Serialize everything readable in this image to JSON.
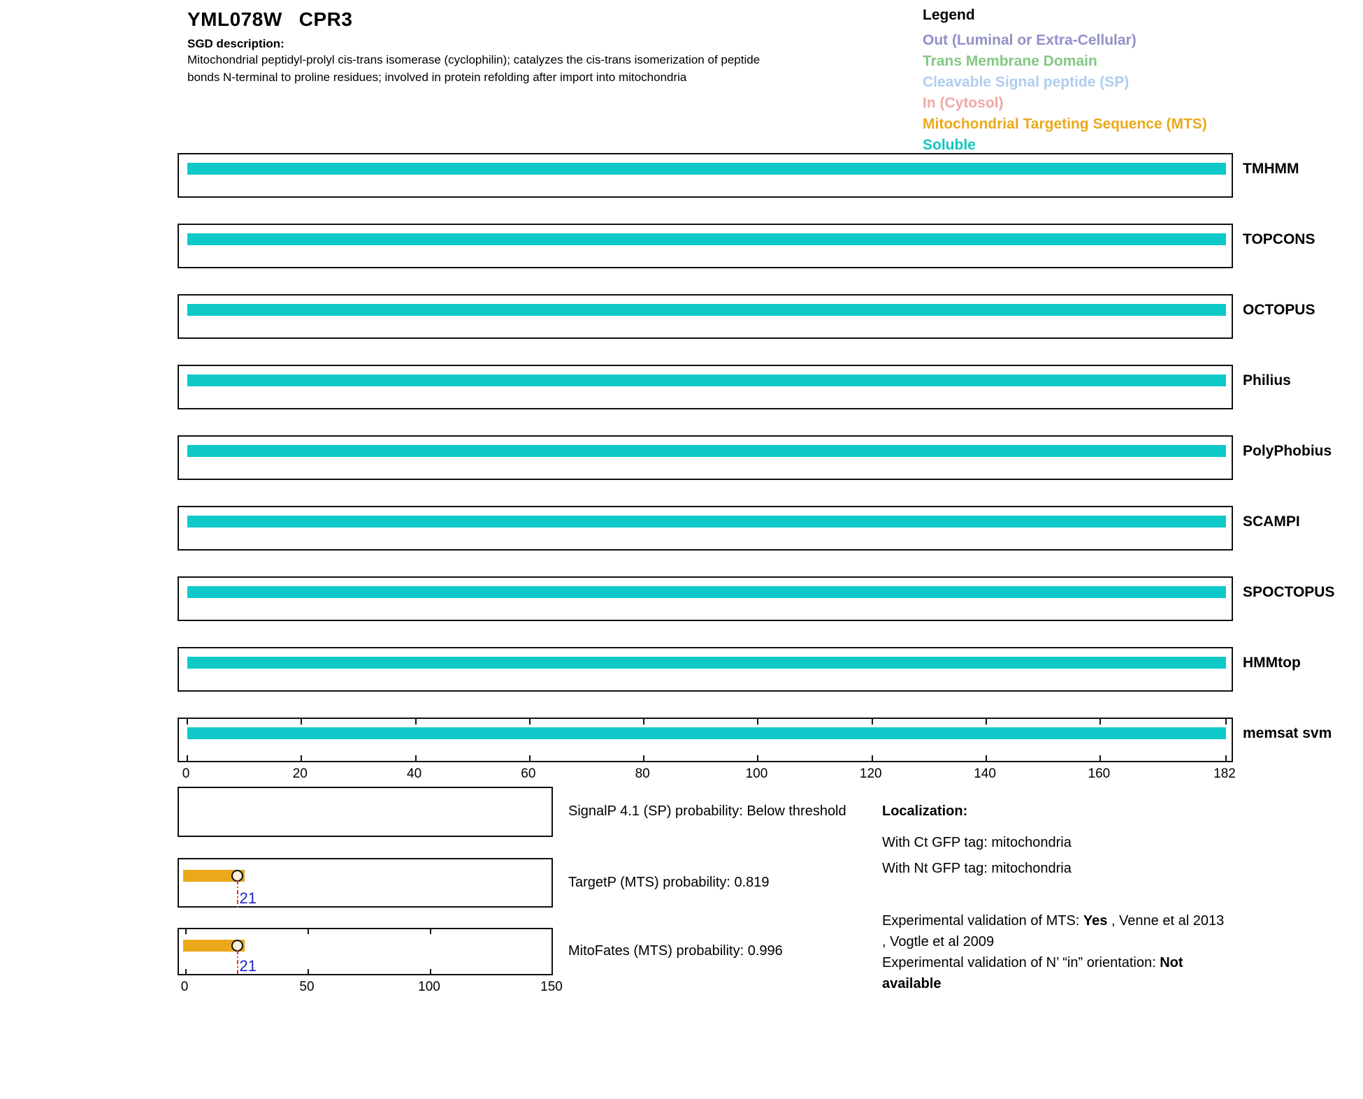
{
  "header": {
    "gene_id": "YML078W",
    "gene_name": "CPR3",
    "sgd_label": "SGD description:",
    "description_line1": "Mitochondrial peptidyl-prolyl cis-trans isomerase (cyclophilin); catalyzes the cis-trans isomerization of peptide",
    "description_line2": "bonds N-terminal to proline residues; involved in protein refolding after import into mitochondria"
  },
  "legend": {
    "title": "Legend",
    "items": [
      {
        "label": "Out (Luminal or Extra-Cellular)",
        "color": "#9191C9"
      },
      {
        "label": "Trans Membrane Domain",
        "color": "#82C982"
      },
      {
        "label": "Cleavable Signal peptide (SP)",
        "color": "#AFCDF0"
      },
      {
        "label": "In (Cytosol)",
        "color": "#F0A8A5"
      },
      {
        "label": "Mitochondrial Targeting Sequence (MTS)",
        "color": "#EBA81A"
      },
      {
        "label": "Soluble",
        "color": "#12C6C2"
      }
    ]
  },
  "chart_data": {
    "type": "bar",
    "title": "Protein topology and targeting predictions for YML078W CPR3",
    "sequence_length": 182,
    "x_axis_ticks": [
      0,
      20,
      40,
      60,
      80,
      100,
      120,
      140,
      160,
      182
    ],
    "tracks": [
      {
        "name": "TMHMM",
        "segments": [
          {
            "type": "Soluble",
            "start": 0,
            "end": 182
          }
        ]
      },
      {
        "name": "TOPCONS",
        "segments": [
          {
            "type": "Soluble",
            "start": 0,
            "end": 182
          }
        ]
      },
      {
        "name": "OCTOPUS",
        "segments": [
          {
            "type": "Soluble",
            "start": 0,
            "end": 182
          }
        ]
      },
      {
        "name": "Philius",
        "segments": [
          {
            "type": "Soluble",
            "start": 0,
            "end": 182
          }
        ]
      },
      {
        "name": "PolyPhobius",
        "segments": [
          {
            "type": "Soluble",
            "start": 0,
            "end": 182
          }
        ]
      },
      {
        "name": "SCAMPI",
        "segments": [
          {
            "type": "Soluble",
            "start": 0,
            "end": 182
          }
        ]
      },
      {
        "name": "SPOCTOPUS",
        "segments": [
          {
            "type": "Soluble",
            "start": 0,
            "end": 182
          }
        ]
      },
      {
        "name": "HMMtop",
        "segments": [
          {
            "type": "Soluble",
            "start": 0,
            "end": 182
          }
        ]
      },
      {
        "name": "memsat svm",
        "segments": [
          {
            "type": "Soluble",
            "start": 0,
            "end": 182
          }
        ]
      }
    ],
    "probability_plots": [
      {
        "name": "SignalP",
        "caption": "SignalP 4.1 (SP) probability: Below threshold",
        "value": null,
        "bar": null
      },
      {
        "name": "TargetP",
        "caption": "TargetP (MTS) probability: 0.819",
        "value": 0.819,
        "bar": {
          "type": "MTS",
          "start": 0,
          "end": 24,
          "marker": 21
        }
      },
      {
        "name": "MitoFates",
        "caption": "MitoFates (MTS) probability: 0.996",
        "value": 0.996,
        "bar": {
          "type": "MTS",
          "start": 0,
          "end": 24,
          "marker": 21
        }
      }
    ],
    "probability_axis_ticks": [
      0,
      50,
      100,
      150
    ],
    "axis_range_main": [
      0,
      182
    ],
    "axis_range_probability": [
      0,
      150
    ],
    "grid": false,
    "legend_position": "top-right"
  },
  "colors": {
    "soluble_bar": "#0FC9C9",
    "mts_bar": "#EBA81A",
    "marker_fill": "#FCEFD9",
    "marker_border": "#111111",
    "cleavage_line": "#E8382A",
    "cleavage_label": "#2222CC",
    "box_border": "#111111",
    "text": "#000000"
  },
  "info": {
    "localization_title": "Localization:",
    "localization_lines": [
      "With Ct GFP tag: mitochondria",
      "With Nt GFP tag: mitochondria"
    ],
    "experimental_lines": [
      {
        "segments": [
          {
            "t": "Experimental validation of MTS: "
          },
          {
            "t": "Yes",
            "b": true
          },
          {
            "t": " , Venne et al 2013"
          }
        ]
      },
      {
        "segments": [
          {
            "t": ", Vogtle et al 2009"
          }
        ]
      },
      {
        "segments": [
          {
            "t": "Experimental validation of N’ “in” orientation: "
          },
          {
            "t": "Not",
            "b": true
          }
        ]
      },
      {
        "segments": [
          {
            "t": "available",
            "b": true
          }
        ]
      }
    ]
  }
}
